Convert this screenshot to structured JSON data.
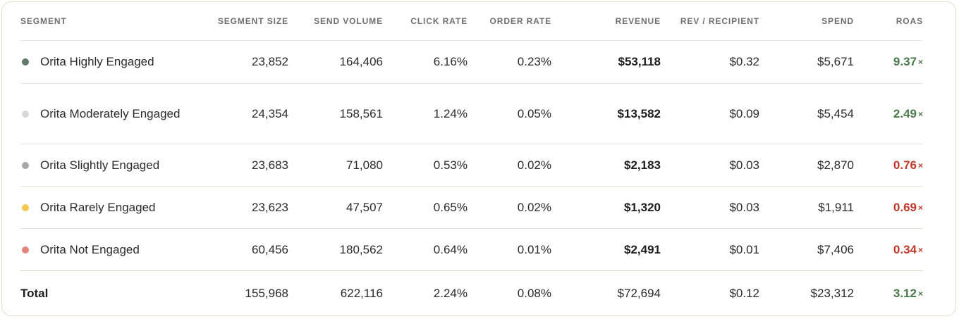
{
  "colors": {
    "border": "#e4ddcc",
    "good": "#4a7a4c",
    "bad": "#c0392b"
  },
  "columns": {
    "segment": "SEGMENT",
    "segment_size": "SEGMENT SIZE",
    "send_volume": "SEND VOLUME",
    "click_rate": "CLICK RATE",
    "order_rate": "ORDER RATE",
    "revenue": "REVENUE",
    "rev_per_recipient": "REV / RECIPIENT",
    "spend": "SPEND",
    "roas": "ROAS"
  },
  "rows": [
    {
      "segment": "Orita Highly Engaged",
      "dot_color": "#5f7a69",
      "segment_size": "23,852",
      "send_volume": "164,406",
      "click_rate": "6.16%",
      "order_rate": "0.23%",
      "revenue": "$53,118",
      "rev_per_recipient": "$0.32",
      "spend": "$5,671",
      "roas": "9.37",
      "roas_status": "good"
    },
    {
      "segment": "Orita Moderately Engaged",
      "dot_color": "#d9d9d9",
      "segment_size": "24,354",
      "send_volume": "158,561",
      "click_rate": "1.24%",
      "order_rate": "0.05%",
      "revenue": "$13,582",
      "rev_per_recipient": "$0.09",
      "spend": "$5,454",
      "roas": "2.49",
      "roas_status": "good"
    },
    {
      "segment": "Orita Slightly Engaged",
      "dot_color": "#a7a7a7",
      "segment_size": "23,683",
      "send_volume": "71,080",
      "click_rate": "0.53%",
      "order_rate": "0.02%",
      "revenue": "$2,183",
      "rev_per_recipient": "$0.03",
      "spend": "$2,870",
      "roas": "0.76",
      "roas_status": "bad"
    },
    {
      "segment": "Orita Rarely Engaged",
      "dot_color": "#f3c94d",
      "segment_size": "23,623",
      "send_volume": "47,507",
      "click_rate": "0.65%",
      "order_rate": "0.02%",
      "revenue": "$1,320",
      "rev_per_recipient": "$0.03",
      "spend": "$1,911",
      "roas": "0.69",
      "roas_status": "bad"
    },
    {
      "segment": "Orita Not Engaged",
      "dot_color": "#e8857a",
      "segment_size": "60,456",
      "send_volume": "180,562",
      "click_rate": "0.64%",
      "order_rate": "0.01%",
      "revenue": "$2,491",
      "rev_per_recipient": "$0.01",
      "spend": "$7,406",
      "roas": "0.34",
      "roas_status": "bad"
    }
  ],
  "total": {
    "label": "Total",
    "segment_size": "155,968",
    "send_volume": "622,116",
    "click_rate": "2.24%",
    "order_rate": "0.08%",
    "revenue": "$72,694",
    "rev_per_recipient": "$0.12",
    "spend": "$23,312",
    "roas": "3.12",
    "roas_status": "good"
  },
  "roas_suffix": "×"
}
